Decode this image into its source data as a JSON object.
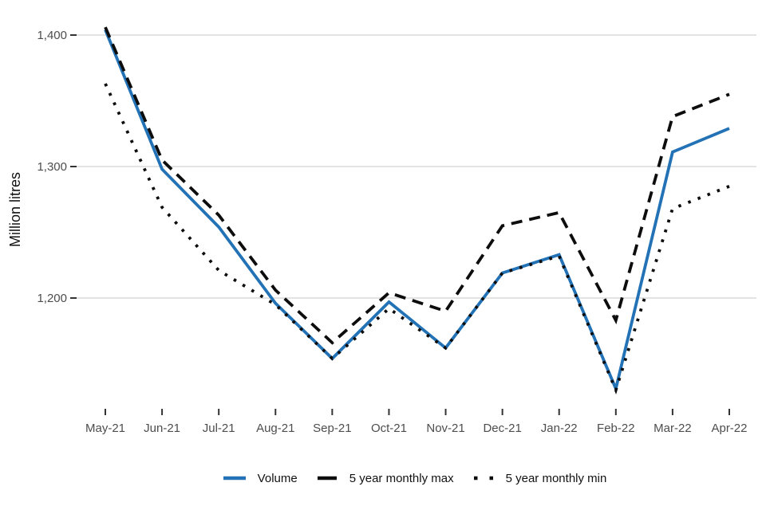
{
  "chart_data": {
    "type": "line",
    "title": "",
    "xlabel": "",
    "ylabel": "Million litres",
    "categories": [
      "May-21",
      "Jun-21",
      "Jul-21",
      "Aug-21",
      "Sep-21",
      "Oct-21",
      "Nov-21",
      "Dec-21",
      "Jan-22",
      "Feb-22",
      "Mar-22",
      "Apr-22"
    ],
    "yticks": [
      {
        "label": "1,200",
        "value": 1200
      },
      {
        "label": "1,300",
        "value": 1300
      },
      {
        "label": "1,400",
        "value": 1400
      }
    ],
    "ylim": [
      1116,
      1420
    ],
    "grid": "horizontal-only",
    "legend_position": "bottom",
    "background": "#ffffff",
    "gridline_color": "#e3e3e3",
    "tick_label_color": "#4d4d4d",
    "series": [
      {
        "name": "Volume",
        "style": "solid",
        "color": "#2272b5",
        "values": [
          1404,
          1298,
          1254,
          1196,
          1154,
          1197,
          1162,
          1219,
          1233,
          1131,
          1311,
          1329
        ]
      },
      {
        "name": "5 year monthly max",
        "style": "dashed",
        "color": "#0d0d0d",
        "values": [
          1406,
          1305,
          1263,
          1206,
          1166,
          1204,
          1190,
          1255,
          1265,
          1183,
          1338,
          1355
        ]
      },
      {
        "name": "5 year monthly min",
        "style": "dotted",
        "color": "#0d0d0d",
        "values": [
          1363,
          1269,
          1221,
          1195,
          1154,
          1192,
          1162,
          1219,
          1232,
          1130,
          1268,
          1285
        ]
      }
    ]
  }
}
